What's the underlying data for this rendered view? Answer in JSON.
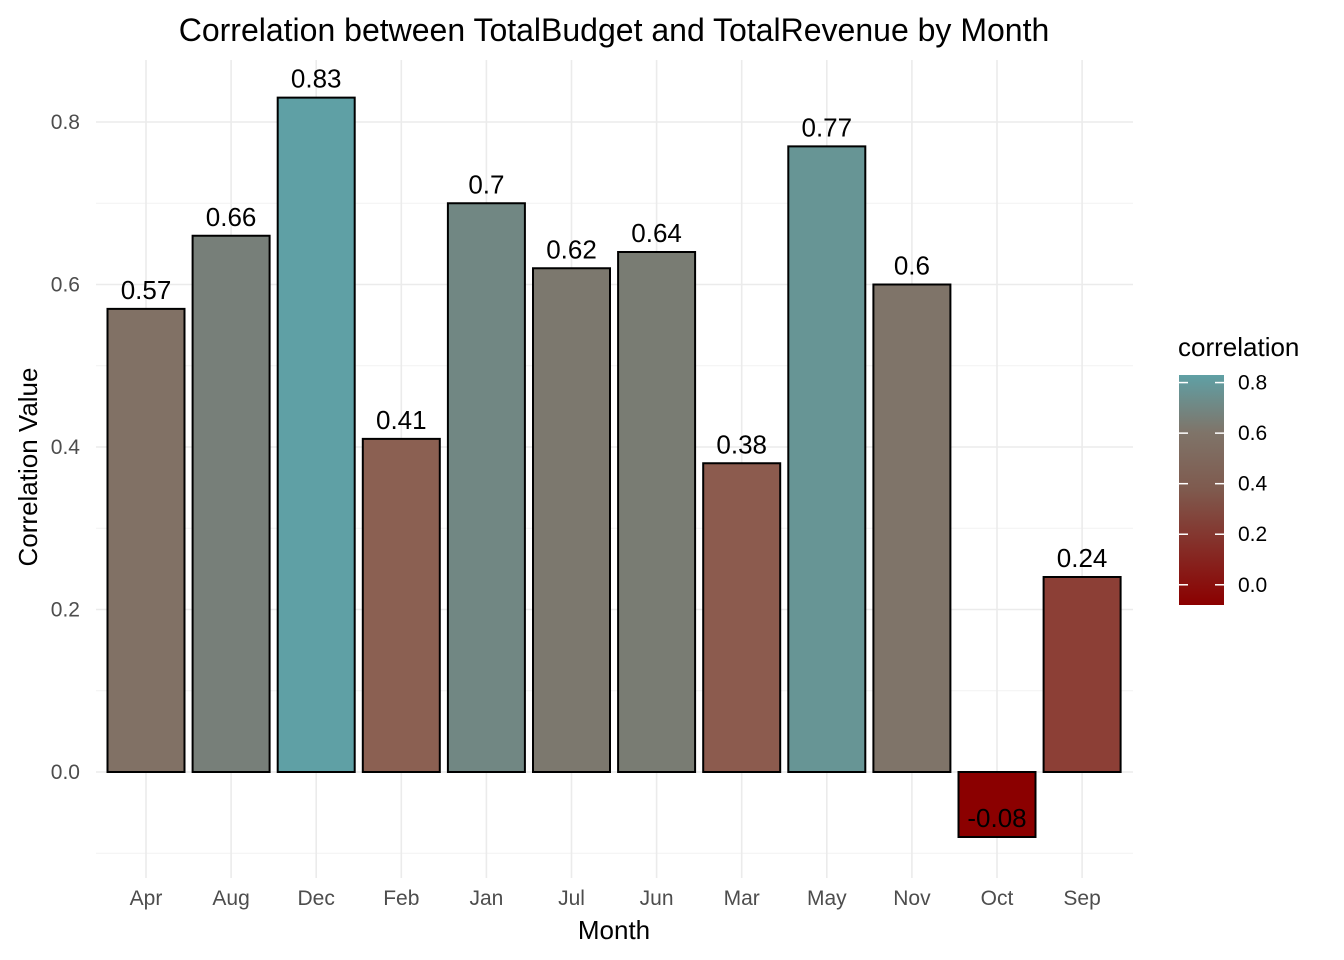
{
  "chart_data": {
    "type": "bar",
    "title": "Correlation between TotalBudget and TotalRevenue by Month",
    "xlabel": "Month",
    "ylabel": "Correlation Value",
    "categories": [
      "Apr",
      "Aug",
      "Dec",
      "Feb",
      "Jan",
      "Jul",
      "Jun",
      "Mar",
      "May",
      "Nov",
      "Oct",
      "Sep"
    ],
    "values": [
      0.57,
      0.66,
      0.83,
      0.41,
      0.7,
      0.62,
      0.64,
      0.38,
      0.77,
      0.6,
      -0.08,
      0.24
    ],
    "data_labels": [
      "0.57",
      "0.66",
      "0.83",
      "0.41",
      "0.7",
      "0.62",
      "0.64",
      "0.38",
      "0.77",
      "0.6",
      "-0.08",
      "0.24"
    ],
    "ylim": [
      -0.1,
      0.85
    ],
    "y_ticks": [
      0.0,
      0.2,
      0.4,
      0.6,
      0.8
    ],
    "y_tick_labels": [
      "0.0",
      "0.2",
      "0.4",
      "0.6",
      "0.8"
    ],
    "grid": true,
    "legend": {
      "title": "correlation",
      "placement": "right",
      "ticks": [
        0.8,
        0.6,
        0.4,
        0.2,
        0.0
      ],
      "tick_labels": [
        "0.8",
        "0.6",
        "0.4",
        "0.2",
        "0.0"
      ],
      "color_low": "#8b0000",
      "color_mid": "#7f7469",
      "color_high": "#5fa0a5",
      "range": [
        -0.08,
        0.83
      ]
    }
  }
}
